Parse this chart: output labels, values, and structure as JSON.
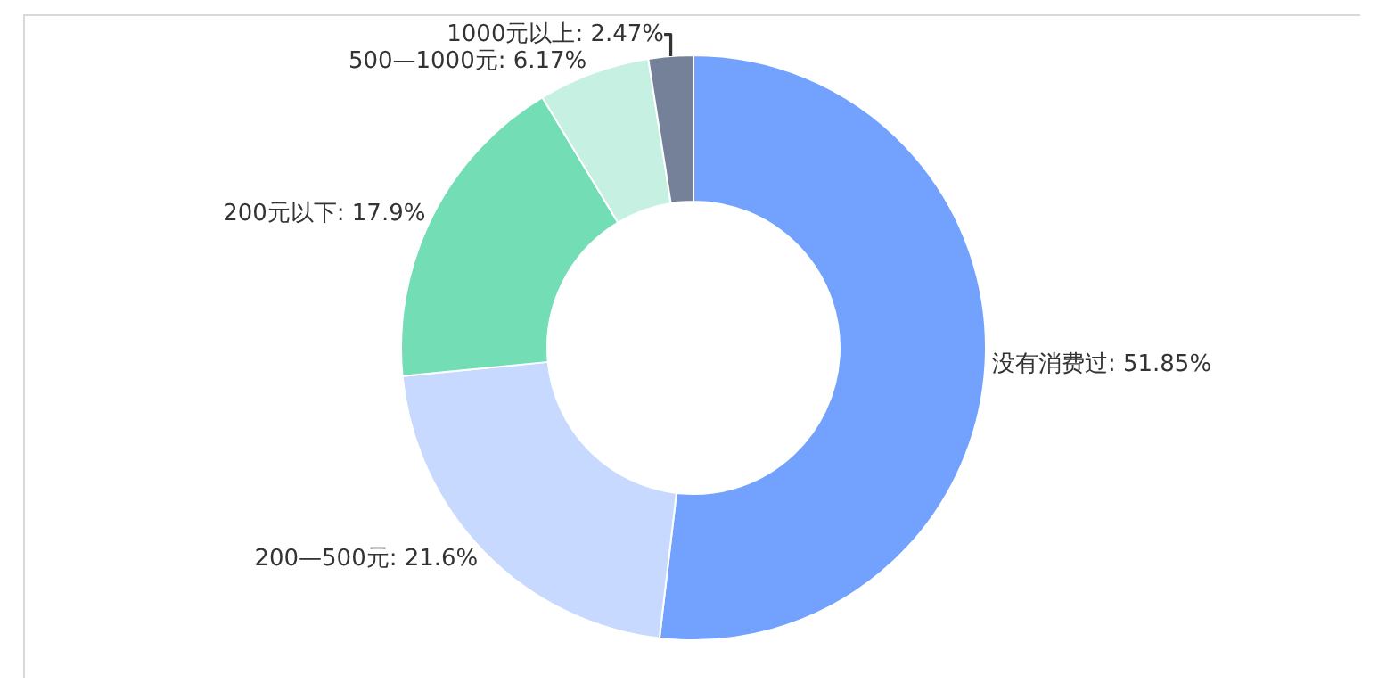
{
  "chart_data": {
    "type": "donut",
    "categories": [
      "没有消费过",
      "200—500元",
      "200元以下",
      "500—1000元",
      "1000元以上"
    ],
    "values": [
      51.85,
      21.6,
      17.9,
      6.17,
      2.47
    ],
    "value_labels": [
      "51.85%",
      "21.6%",
      "17.9%",
      "6.17%",
      "2.47%"
    ],
    "colors": [
      "#72a1fe",
      "#c7d9fe",
      "#73ddb5",
      "#c6f1e2",
      "#758198"
    ],
    "legend": false
  }
}
